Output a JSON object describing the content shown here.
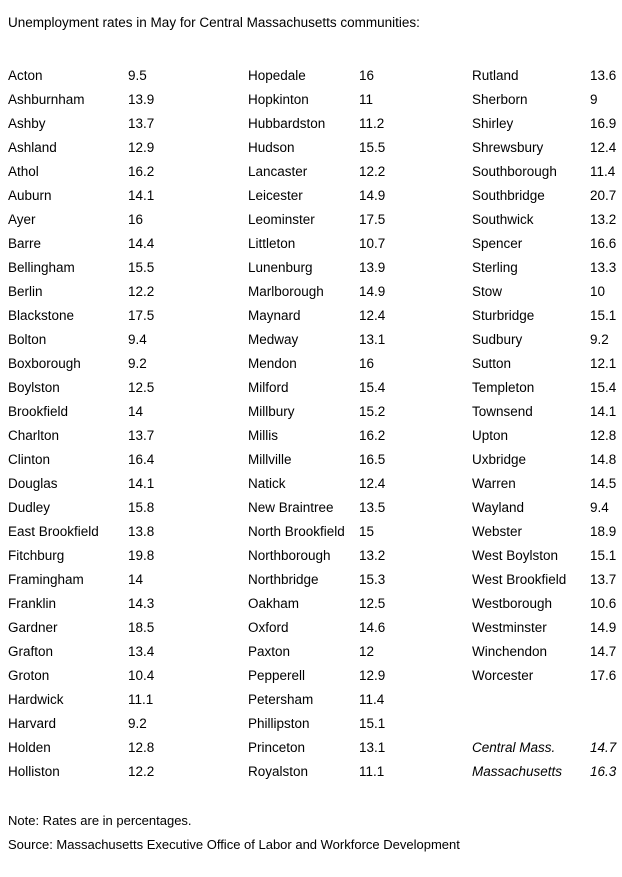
{
  "page": {
    "title": "Unemployment rates in May for Central Massachusetts communities:",
    "note": "Note: Rates are in percentages.",
    "source": "Source: Massachusetts Executive Office of Labor and Workforce Development"
  },
  "table": {
    "unit": "percent",
    "columns": [
      {
        "rows": [
          {
            "name": "Acton",
            "value": "9.5"
          },
          {
            "name": "Ashburnham",
            "value": "13.9"
          },
          {
            "name": "Ashby",
            "value": "13.7"
          },
          {
            "name": "Ashland",
            "value": "12.9"
          },
          {
            "name": "Athol",
            "value": "16.2"
          },
          {
            "name": "Auburn",
            "value": "14.1"
          },
          {
            "name": "Ayer",
            "value": "16"
          },
          {
            "name": "Barre",
            "value": "14.4"
          },
          {
            "name": "Bellingham",
            "value": "15.5"
          },
          {
            "name": "Berlin",
            "value": "12.2"
          },
          {
            "name": "Blackstone",
            "value": "17.5"
          },
          {
            "name": "Bolton",
            "value": "9.4"
          },
          {
            "name": "Boxborough",
            "value": "9.2"
          },
          {
            "name": "Boylston",
            "value": "12.5"
          },
          {
            "name": "Brookfield",
            "value": "14"
          },
          {
            "name": "Charlton",
            "value": "13.7"
          },
          {
            "name": "Clinton",
            "value": "16.4"
          },
          {
            "name": "Douglas",
            "value": "14.1"
          },
          {
            "name": "Dudley",
            "value": "15.8"
          },
          {
            "name": "East Brookfield",
            "value": "13.8"
          },
          {
            "name": "Fitchburg",
            "value": "19.8"
          },
          {
            "name": "Framingham",
            "value": "14"
          },
          {
            "name": "Franklin",
            "value": "14.3"
          },
          {
            "name": "Gardner",
            "value": "18.5"
          },
          {
            "name": "Grafton",
            "value": "13.4"
          },
          {
            "name": "Groton",
            "value": "10.4"
          },
          {
            "name": "Hardwick",
            "value": "11.1"
          },
          {
            "name": "Harvard",
            "value": "9.2"
          },
          {
            "name": "Holden",
            "value": "12.8"
          },
          {
            "name": "Holliston",
            "value": "12.2"
          }
        ]
      },
      {
        "rows": [
          {
            "name": "Hopedale",
            "value": "16"
          },
          {
            "name": "Hopkinton",
            "value": "11"
          },
          {
            "name": "Hubbardston",
            "value": "11.2"
          },
          {
            "name": "Hudson",
            "value": "15.5"
          },
          {
            "name": "Lancaster",
            "value": "12.2"
          },
          {
            "name": "Leicester",
            "value": "14.9"
          },
          {
            "name": "Leominster",
            "value": "17.5"
          },
          {
            "name": "Littleton",
            "value": "10.7"
          },
          {
            "name": "Lunenburg",
            "value": "13.9"
          },
          {
            "name": "Marlborough",
            "value": "14.9"
          },
          {
            "name": "Maynard",
            "value": "12.4"
          },
          {
            "name": "Medway",
            "value": "13.1"
          },
          {
            "name": "Mendon",
            "value": "16"
          },
          {
            "name": "Milford",
            "value": "15.4"
          },
          {
            "name": "Millbury",
            "value": "15.2"
          },
          {
            "name": "Millis",
            "value": "16.2"
          },
          {
            "name": "Millville",
            "value": "16.5"
          },
          {
            "name": "Natick",
            "value": "12.4"
          },
          {
            "name": "New Braintree",
            "value": "13.5"
          },
          {
            "name": "North Brookfield",
            "value": "15"
          },
          {
            "name": "Northborough",
            "value": "13.2"
          },
          {
            "name": "Northbridge",
            "value": "15.3"
          },
          {
            "name": "Oakham",
            "value": "12.5"
          },
          {
            "name": "Oxford",
            "value": "14.6"
          },
          {
            "name": "Paxton",
            "value": "12"
          },
          {
            "name": "Pepperell",
            "value": "12.9"
          },
          {
            "name": "Petersham",
            "value": "11.4"
          },
          {
            "name": "Phillipston",
            "value": "15.1"
          },
          {
            "name": "Princeton",
            "value": "13.1"
          },
          {
            "name": "Royalston",
            "value": "11.1"
          }
        ]
      },
      {
        "rows": [
          {
            "name": "Rutland",
            "value": "13.6"
          },
          {
            "name": "Sherborn",
            "value": "9"
          },
          {
            "name": "Shirley",
            "value": "16.9"
          },
          {
            "name": "Shrewsbury",
            "value": "12.4"
          },
          {
            "name": "Southborough",
            "value": "11.4"
          },
          {
            "name": "Southbridge",
            "value": "20.7"
          },
          {
            "name": "Southwick",
            "value": "13.2"
          },
          {
            "name": "Spencer",
            "value": "16.6"
          },
          {
            "name": "Sterling",
            "value": "13.3"
          },
          {
            "name": "Stow",
            "value": "10"
          },
          {
            "name": "Sturbridge",
            "value": "15.1"
          },
          {
            "name": "Sudbury",
            "value": "9.2"
          },
          {
            "name": "Sutton",
            "value": "12.1"
          },
          {
            "name": "Templeton",
            "value": "15.4"
          },
          {
            "name": "Townsend",
            "value": "14.1"
          },
          {
            "name": "Upton",
            "value": "12.8"
          },
          {
            "name": "Uxbridge",
            "value": "14.8"
          },
          {
            "name": "Warren",
            "value": "14.5"
          },
          {
            "name": "Wayland",
            "value": "9.4"
          },
          {
            "name": "Webster",
            "value": "18.9"
          },
          {
            "name": "West Boylston",
            "value": "15.1"
          },
          {
            "name": "West Brookfield",
            "value": "13.7"
          },
          {
            "name": "Westborough",
            "value": "10.6"
          },
          {
            "name": "Westminster",
            "value": "14.9"
          },
          {
            "name": "Winchendon",
            "value": "14.7"
          },
          {
            "name": "Worcester",
            "value": "17.6"
          }
        ]
      }
    ],
    "summary": [
      {
        "name": "Central Mass.",
        "value": "14.7"
      },
      {
        "name": "Massachusetts",
        "value": "16.3"
      }
    ]
  }
}
